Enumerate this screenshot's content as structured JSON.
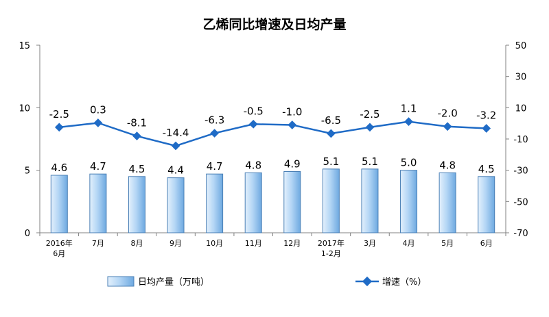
{
  "chart_data": {
    "type": "bar",
    "title": "乙烯同比增速及日均产量",
    "categories": [
      [
        "2016年",
        "6月"
      ],
      [
        "7月"
      ],
      [
        "8月"
      ],
      [
        "9月"
      ],
      [
        "10月"
      ],
      [
        "11月"
      ],
      [
        "12月"
      ],
      [
        "2017年",
        "1-2月"
      ],
      [
        "3月"
      ],
      [
        "4月"
      ],
      [
        "5月"
      ],
      [
        "6月"
      ]
    ],
    "series": [
      {
        "name": "日均产量（万吨）",
        "type": "bar",
        "axis": "left",
        "values": [
          4.6,
          4.7,
          4.5,
          4.4,
          4.7,
          4.8,
          4.9,
          5.1,
          5.1,
          5.0,
          4.8,
          4.5
        ],
        "labels": [
          "4.6",
          "4.7",
          "4.5",
          "4.4",
          "4.7",
          "4.8",
          "4.9",
          "5.1",
          "5.1",
          "5.0",
          "4.8",
          "4.5"
        ]
      },
      {
        "name": "增速（%）",
        "type": "line",
        "axis": "right",
        "values": [
          -2.5,
          0.3,
          -8.1,
          -14.4,
          -6.3,
          -0.5,
          -1.0,
          -6.5,
          -2.5,
          1.1,
          -2.0,
          -3.2
        ],
        "labels": [
          "-2.5",
          "0.3",
          "-8.1",
          "-14.4",
          "-6.3",
          "-0.5",
          "-1.0",
          "-6.5",
          "-2.5",
          "1.1",
          "-2.0",
          "-3.2"
        ]
      }
    ],
    "y_left": {
      "ylim": [
        0,
        15
      ],
      "ticks": [
        0,
        5,
        10,
        15
      ],
      "tick_labels": [
        "0",
        "5",
        "10",
        "15"
      ]
    },
    "y_right": {
      "ylim": [
        -70,
        50
      ],
      "ticks": [
        -70,
        -50,
        -30,
        -10,
        10,
        30,
        50
      ],
      "tick_labels": [
        "-70",
        "-50",
        "-30",
        "-10",
        "10",
        "30",
        "50"
      ]
    },
    "grid": false,
    "legend": "bottom",
    "colors": {
      "bar_fill_light": "#d6e9fb",
      "bar_fill_dark": "#78b4e8",
      "bar_stroke": "#4a7fb5",
      "line": "#1f6bc6",
      "axis": "#808080"
    }
  }
}
